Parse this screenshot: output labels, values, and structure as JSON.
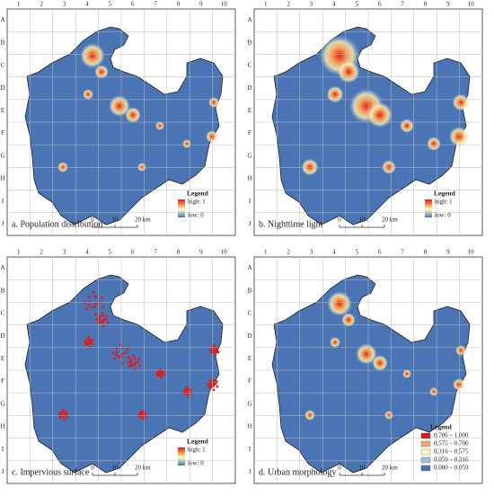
{
  "grid": {
    "columns": [
      "1",
      "2",
      "3",
      "4",
      "5",
      "6",
      "7",
      "8",
      "9",
      "10"
    ],
    "rows": [
      "A",
      "B",
      "C",
      "D",
      "E",
      "F",
      "G",
      "H",
      "I",
      "J"
    ]
  },
  "panels": [
    {
      "caption": "a. Population distribution",
      "legend": {
        "title": "Legend",
        "high": "high: 1",
        "low": "low: 0"
      },
      "scale": [
        "0",
        "10",
        "20 km"
      ]
    },
    {
      "caption": "b. Nighttime light",
      "legend": {
        "title": "Legend",
        "high": "high: 1",
        "low": "low: 0"
      },
      "scale": [
        "0",
        "10",
        "20 km"
      ]
    },
    {
      "caption": "c. Impervious surface",
      "legend": {
        "title": "Legend",
        "high": "high: 1",
        "low": "low: 0"
      },
      "scale": [
        "0",
        "10",
        "20 km"
      ]
    },
    {
      "caption": "d. Urban morphology",
      "legend": {
        "title": "Legend",
        "classes": [
          {
            "label": "0.706 – 1.000",
            "color": "#d7191c"
          },
          {
            "label": "0.575 – 0.706",
            "color": "#f4a46a"
          },
          {
            "label": "0.316 – 0.575",
            "color": "#fbf5bf"
          },
          {
            "label": "0.059 – 0.316",
            "color": "#9cc0dc"
          },
          {
            "label": "0.000 – 0.059",
            "color": "#4a74b4"
          }
        ]
      },
      "scale": [
        "0",
        "10",
        "20 km"
      ]
    }
  ]
}
